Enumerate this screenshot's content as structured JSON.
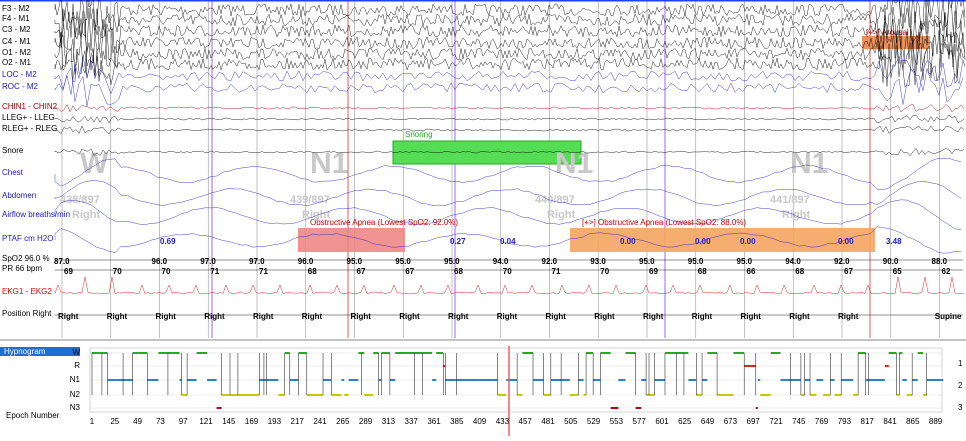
{
  "channels": [
    {
      "label": "F3 - M2",
      "color": "#000000"
    },
    {
      "label": "F4 - M1",
      "color": "#000000"
    },
    {
      "label": "C3 - M2",
      "color": "#000000"
    },
    {
      "label": "C4 - M1",
      "color": "#000000"
    },
    {
      "label": "O1 - M2",
      "color": "#000000"
    },
    {
      "label": "O2 - M1",
      "color": "#000000"
    },
    {
      "label": "LOC - M2",
      "color": "#2020c8"
    },
    {
      "label": "ROC - M2",
      "color": "#2020c8"
    },
    {
      "label": "CHIN1 - CHIN2",
      "color": "#a00000"
    },
    {
      "label": "LLEG+ - LLEG",
      "color": "#000000"
    },
    {
      "label": "RLEG+ - RLEG",
      "color": "#000000"
    },
    {
      "label": "Snore",
      "color": "#000000"
    },
    {
      "label": "Chest",
      "color": "#2020c8"
    },
    {
      "label": "Abdomen",
      "color": "#2020c8"
    },
    {
      "label": "Airflow breaths/min",
      "color": "#2020c8"
    },
    {
      "label": "PTAF       cm H2O",
      "color": "#2020c8"
    },
    {
      "label": "SpO2  96.0 %",
      "color": "#000000"
    },
    {
      "label": "PR   66 bpm",
      "color": "#000000"
    },
    {
      "label": "EKG1 - EKG2",
      "color": "#e00000"
    },
    {
      "label": "Position  Right",
      "color": "#000000"
    }
  ],
  "epochs": [
    {
      "stage": "W",
      "number": "438/897",
      "position": "Right"
    },
    {
      "stage": "N1",
      "number": "439/897",
      "position": "Right"
    },
    {
      "stage": "N1",
      "number": "440/897",
      "position": "Right"
    },
    {
      "stage": "N1",
      "number": "441/897",
      "position": "Right"
    }
  ],
  "events": [
    {
      "label": "Snoring"
    },
    {
      "label": "Obstructive Apnea (Lowest SpO2: 92.0%)"
    },
    {
      "label": "[+>] Obstructive Apnea (Lowest SpO2: 88.0%)"
    },
    {
      "label": "[+>] Arousal"
    }
  ],
  "ptaf_values": [
    "0.69",
    "0.27",
    "0.04",
    "0.00",
    "0.00",
    "0.00",
    "0.00",
    "3.48"
  ],
  "spo2_values": [
    "87.0",
    "96.0",
    "97.0",
    "97.0",
    "96.0",
    "95.0",
    "95.0",
    "95.0",
    "94.0",
    "92.0",
    "93.0",
    "95.0",
    "95.0",
    "95.0",
    "94.0",
    "92.0",
    "90.0",
    "88.0"
  ],
  "pr_values": [
    "69",
    "70",
    "70",
    "71",
    "71",
    "68",
    "67",
    "67",
    "68",
    "70",
    "71",
    "70",
    "69",
    "68",
    "66",
    "68",
    "67",
    "65",
    "62"
  ],
  "position_values": [
    "Right",
    "Right",
    "Right",
    "Right",
    "Right",
    "Right",
    "Right",
    "Right",
    "Right",
    "Right",
    "Right",
    "Right",
    "Right",
    "Right",
    "Right",
    "Right",
    "Right",
    "Supine"
  ],
  "hypnogram": {
    "tab": "Hypnogram",
    "stages": [
      "W",
      "R",
      "N1",
      "N2",
      "N3"
    ],
    "x_label": "Epoch Number",
    "epoch_ticks": [
      "1",
      "25",
      "49",
      "73",
      "97",
      "121",
      "145",
      "169",
      "193",
      "217",
      "241",
      "265",
      "289",
      "313",
      "337",
      "361",
      "385",
      "409",
      "433",
      "457",
      "481",
      "505",
      "529",
      "553",
      "577",
      "601",
      "625",
      "649",
      "673",
      "697",
      "721",
      "745",
      "769",
      "793",
      "817",
      "841",
      "865",
      "889"
    ],
    "side_labels": [
      "1",
      "2",
      "3"
    ]
  }
}
